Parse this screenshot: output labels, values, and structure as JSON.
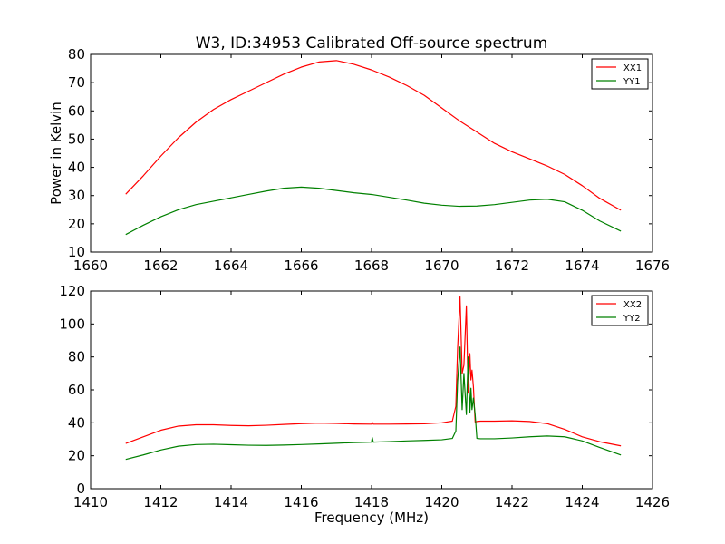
{
  "title": "W3, ID:34953 Calibrated Off-source spectrum",
  "colors": {
    "xx": "#ff0000",
    "yy": "#008000",
    "axis": "#000000",
    "background": "#ffffff"
  },
  "chart_data": [
    {
      "type": "line",
      "title": "W3, ID:34953 Calibrated Off-source spectrum",
      "xlabel": "",
      "ylabel": "Power in Kelvin",
      "xlim": [
        1660,
        1676
      ],
      "ylim": [
        10,
        80
      ],
      "xticks": [
        "1660",
        "1662",
        "1664",
        "1666",
        "1668",
        "1670",
        "1672",
        "1674",
        "1676"
      ],
      "yticks": [
        "10",
        "20",
        "30",
        "40",
        "50",
        "60",
        "70",
        "80"
      ],
      "grid": false,
      "legend": "top-right",
      "series": [
        {
          "name": "XX1",
          "color": "#ff0000",
          "x": [
            1661,
            1661.5,
            1662,
            1662.5,
            1663,
            1663.5,
            1664,
            1664.5,
            1665,
            1665.5,
            1666,
            1666.5,
            1667,
            1667.5,
            1668,
            1668.5,
            1669,
            1669.5,
            1670,
            1670.5,
            1671,
            1671.5,
            1672,
            1672.5,
            1673,
            1673.5,
            1674,
            1674.5,
            1675.1
          ],
          "y": [
            30.5,
            37,
            44,
            50.5,
            56,
            60.5,
            64,
            67,
            70,
            73,
            75.5,
            77.3,
            77.8,
            76.5,
            74.5,
            72,
            69,
            65.5,
            61,
            56.5,
            52.5,
            48.5,
            45.5,
            43,
            40.5,
            37.5,
            33.5,
            29,
            24.8
          ]
        },
        {
          "name": "YY1",
          "color": "#008000",
          "x": [
            1661,
            1661.5,
            1662,
            1662.5,
            1663,
            1663.5,
            1664,
            1664.5,
            1665,
            1665.5,
            1666,
            1666.5,
            1667,
            1667.5,
            1668,
            1668.5,
            1669,
            1669.5,
            1670,
            1670.5,
            1671,
            1671.5,
            1672,
            1672.5,
            1673,
            1673.5,
            1674,
            1674.5,
            1675.1
          ],
          "y": [
            16.2,
            19.5,
            22.5,
            25,
            26.8,
            28,
            29.2,
            30.4,
            31.6,
            32.6,
            33,
            32.6,
            31.8,
            31,
            30.4,
            29.4,
            28.4,
            27.3,
            26.6,
            26.2,
            26.3,
            26.8,
            27.6,
            28.4,
            28.7,
            27.8,
            24.8,
            21,
            17.4
          ]
        }
      ]
    },
    {
      "type": "line",
      "title": "",
      "xlabel": "Frequency (MHz)",
      "ylabel": "",
      "xlim": [
        1410,
        1426
      ],
      "ylim": [
        0,
        120
      ],
      "xticks": [
        "1410",
        "1412",
        "1414",
        "1416",
        "1418",
        "1420",
        "1422",
        "1424",
        "1426"
      ],
      "yticks": [
        "0",
        "20",
        "40",
        "60",
        "80",
        "100",
        "120"
      ],
      "grid": false,
      "legend": "top-right",
      "series": [
        {
          "name": "XX2",
          "color": "#ff0000",
          "x": [
            1411,
            1411.5,
            1412,
            1412.5,
            1413,
            1413.5,
            1414,
            1414.5,
            1415,
            1415.5,
            1416,
            1416.5,
            1417,
            1417.5,
            1418,
            1418.02,
            1418.05,
            1418.5,
            1419,
            1419.5,
            1420,
            1420.3,
            1420.4,
            1420.45,
            1420.52,
            1420.58,
            1420.63,
            1420.7,
            1420.75,
            1420.8,
            1420.83,
            1420.86,
            1420.9,
            1420.95,
            1421,
            1421.1,
            1421.5,
            1422,
            1422.5,
            1423,
            1423.5,
            1424,
            1424.5,
            1425.1
          ],
          "y": [
            27.5,
            31.5,
            35.5,
            38,
            38.8,
            38.8,
            38.4,
            38.2,
            38.5,
            39,
            39.5,
            39.8,
            39.6,
            39.3,
            39.2,
            40.3,
            39.2,
            39.2,
            39.3,
            39.4,
            40,
            41,
            50,
            85,
            116.5,
            70,
            75,
            111,
            58,
            82,
            66,
            72,
            62,
            40.5,
            40.8,
            41,
            41,
            41.2,
            40.8,
            39.5,
            36,
            31.5,
            28.5,
            26
          ]
        },
        {
          "name": "YY2",
          "color": "#008000",
          "x": [
            1411,
            1411.5,
            1412,
            1412.5,
            1413,
            1413.5,
            1414,
            1414.5,
            1415,
            1415.5,
            1416,
            1416.5,
            1417,
            1417.5,
            1418,
            1418.02,
            1418.05,
            1418.5,
            1419,
            1419.5,
            1420,
            1420.3,
            1420.4,
            1420.45,
            1420.52,
            1420.58,
            1420.63,
            1420.7,
            1420.75,
            1420.8,
            1420.83,
            1420.86,
            1420.9,
            1420.95,
            1421,
            1421.1,
            1421.5,
            1422,
            1422.5,
            1423,
            1423.5,
            1424,
            1424.5,
            1425.1
          ],
          "y": [
            17.8,
            20.5,
            23.5,
            25.8,
            26.8,
            27,
            26.7,
            26.4,
            26.3,
            26.5,
            26.8,
            27.2,
            27.6,
            28,
            28.3,
            31,
            28.3,
            28.6,
            29,
            29.3,
            29.7,
            30.5,
            35,
            65,
            86,
            48,
            70,
            45,
            80,
            46,
            61,
            48,
            55,
            45,
            30.5,
            30.3,
            30.3,
            30.8,
            31.5,
            32,
            31.5,
            29,
            25,
            20.5
          ]
        }
      ]
    }
  ]
}
